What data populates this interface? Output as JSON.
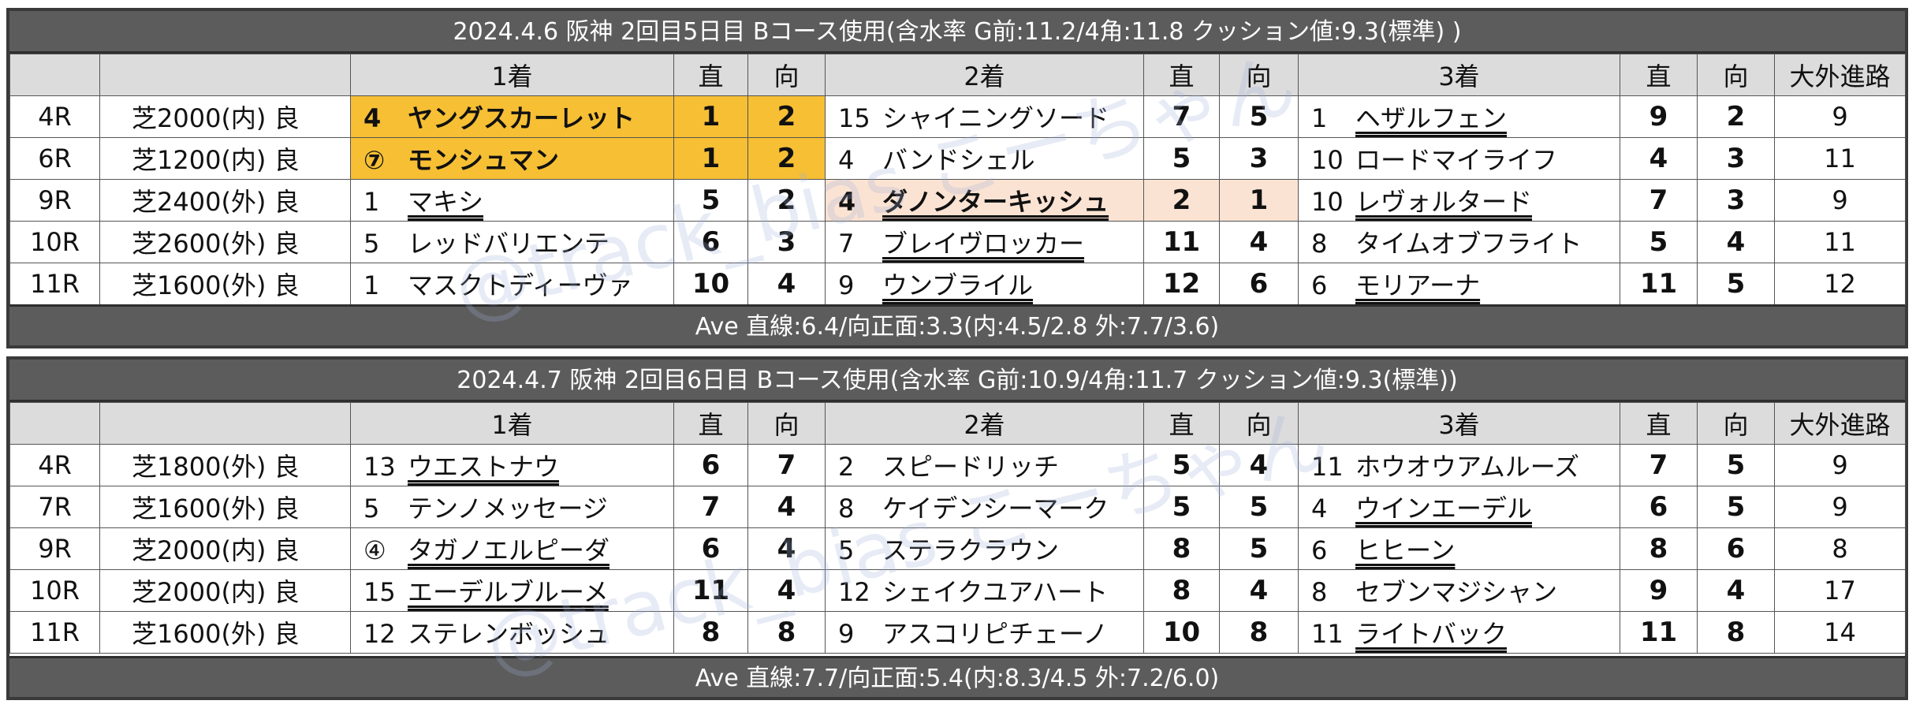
{
  "headers": {
    "first": "1着",
    "second": "2着",
    "third": "3着",
    "straight": "直",
    "facing": "向",
    "outer": "大外進路"
  },
  "watermark": "@track_bias こーちゃん",
  "days": [
    {
      "title": "2024.4.6 阪神 2回目5日目 Bコース使用(含水率 G前:11.2/4角:11.8 クッション値:9.3(標準) )",
      "footer": "Ave 直線:6.4/向正面:3.3(内:4.5/2.8 外:7.7/3.6)",
      "rows": [
        {
          "race": "4R",
          "course": "芝2000(内) 良",
          "p1": {
            "post": "4",
            "name": "ヤングスカーレット",
            "ul": false,
            "hl": "gold",
            "s": "1",
            "m": "2"
          },
          "p2": {
            "post": "15",
            "name": "シャイニングソード",
            "ul": false,
            "hl": "",
            "s": "7",
            "m": "5"
          },
          "p3": {
            "post": "1",
            "name": "ヘザルフェン",
            "ul": true,
            "hl": "",
            "s": "9",
            "m": "2"
          },
          "outer": "9"
        },
        {
          "race": "6R",
          "course": "芝1200(内) 良",
          "p1": {
            "post": "⑦",
            "name": "モンシュマン",
            "ul": false,
            "hl": "gold",
            "s": "1",
            "m": "2"
          },
          "p2": {
            "post": "4",
            "name": "バンドシェル",
            "ul": false,
            "hl": "",
            "s": "5",
            "m": "3"
          },
          "p3": {
            "post": "10",
            "name": "ロードマイライフ",
            "ul": false,
            "hl": "",
            "s": "4",
            "m": "3"
          },
          "outer": "11"
        },
        {
          "race": "9R",
          "course": "芝2400(外) 良",
          "p1": {
            "post": "1",
            "name": "マキシ",
            "ul": true,
            "hl": "",
            "s": "5",
            "m": "2"
          },
          "p2": {
            "post": "4",
            "name": "ダノンターキッシュ",
            "ul": true,
            "hl": "peach",
            "s": "2",
            "m": "1"
          },
          "p3": {
            "post": "10",
            "name": "レヴォルタード",
            "ul": true,
            "hl": "",
            "s": "7",
            "m": "3"
          },
          "outer": "9"
        },
        {
          "race": "10R",
          "course": "芝2600(外) 良",
          "p1": {
            "post": "5",
            "name": "レッドバリエンテ",
            "ul": false,
            "hl": "",
            "s": "6",
            "m": "3"
          },
          "p2": {
            "post": "7",
            "name": "ブレイヴロッカー",
            "ul": true,
            "hl": "",
            "s": "11",
            "m": "4"
          },
          "p3": {
            "post": "8",
            "name": "タイムオブフライト",
            "ul": false,
            "hl": "",
            "s": "5",
            "m": "4"
          },
          "outer": "11"
        },
        {
          "race": "11R",
          "course": "芝1600(外) 良",
          "p1": {
            "post": "1",
            "name": "マスクトディーヴァ",
            "ul": false,
            "hl": "",
            "s": "10",
            "m": "4"
          },
          "p2": {
            "post": "9",
            "name": "ウンブライル",
            "ul": true,
            "hl": "",
            "s": "12",
            "m": "6"
          },
          "p3": {
            "post": "6",
            "name": "モリアーナ",
            "ul": true,
            "hl": "",
            "s": "11",
            "m": "5"
          },
          "outer": "12"
        }
      ]
    },
    {
      "title": "2024.4.7 阪神 2回目6日目 Bコース使用(含水率 G前:10.9/4角:11.7 クッション値:9.3(標準))",
      "footer": "Ave 直線:7.7/向正面:5.4(内:8.3/4.5 外:7.2/6.0)",
      "rows": [
        {
          "race": "4R",
          "course": "芝1800(外) 良",
          "p1": {
            "post": "13",
            "name": "ウエストナウ",
            "ul": true,
            "hl": "",
            "s": "6",
            "m": "7"
          },
          "p2": {
            "post": "2",
            "name": "スピードリッチ",
            "ul": false,
            "hl": "",
            "s": "5",
            "m": "4"
          },
          "p3": {
            "post": "11",
            "name": "ホウオウアムルーズ",
            "ul": false,
            "hl": "",
            "s": "7",
            "m": "5"
          },
          "outer": "9"
        },
        {
          "race": "7R",
          "course": "芝1600(外) 良",
          "p1": {
            "post": "5",
            "name": "テンノメッセージ",
            "ul": false,
            "hl": "",
            "s": "7",
            "m": "4"
          },
          "p2": {
            "post": "8",
            "name": "ケイデンシーマーク",
            "ul": false,
            "hl": "",
            "s": "5",
            "m": "5"
          },
          "p3": {
            "post": "4",
            "name": "ウインエーデル",
            "ul": true,
            "hl": "",
            "s": "6",
            "m": "5"
          },
          "outer": "9"
        },
        {
          "race": "9R",
          "course": "芝2000(内) 良",
          "p1": {
            "post": "④",
            "name": "タガノエルピーダ",
            "ul": true,
            "hl": "",
            "s": "6",
            "m": "4"
          },
          "p2": {
            "post": "5",
            "name": "ステラクラウン",
            "ul": false,
            "hl": "",
            "s": "8",
            "m": "5"
          },
          "p3": {
            "post": "6",
            "name": "ヒヒーン",
            "ul": true,
            "hl": "",
            "s": "8",
            "m": "6"
          },
          "outer": "8"
        },
        {
          "race": "10R",
          "course": "芝2000(内) 良",
          "p1": {
            "post": "15",
            "name": "エーデルブルーメ",
            "ul": true,
            "hl": "",
            "s": "11",
            "m": "4"
          },
          "p2": {
            "post": "12",
            "name": "シェイクユアハート",
            "ul": false,
            "hl": "",
            "s": "8",
            "m": "4"
          },
          "p3": {
            "post": "8",
            "name": "セブンマジシャン",
            "ul": false,
            "hl": "",
            "s": "9",
            "m": "4"
          },
          "outer": "17"
        },
        {
          "race": "11R",
          "course": "芝1600(外) 良",
          "p1": {
            "post": "12",
            "name": "ステレンボッシュ",
            "ul": false,
            "hl": "",
            "s": "8",
            "m": "8"
          },
          "p2": {
            "post": "9",
            "name": "アスコリピチェーノ",
            "ul": false,
            "hl": "",
            "s": "10",
            "m": "8"
          },
          "p3": {
            "post": "11",
            "name": "ライトバック",
            "ul": true,
            "hl": "",
            "s": "11",
            "m": "8"
          },
          "outer": "14"
        }
      ]
    }
  ]
}
